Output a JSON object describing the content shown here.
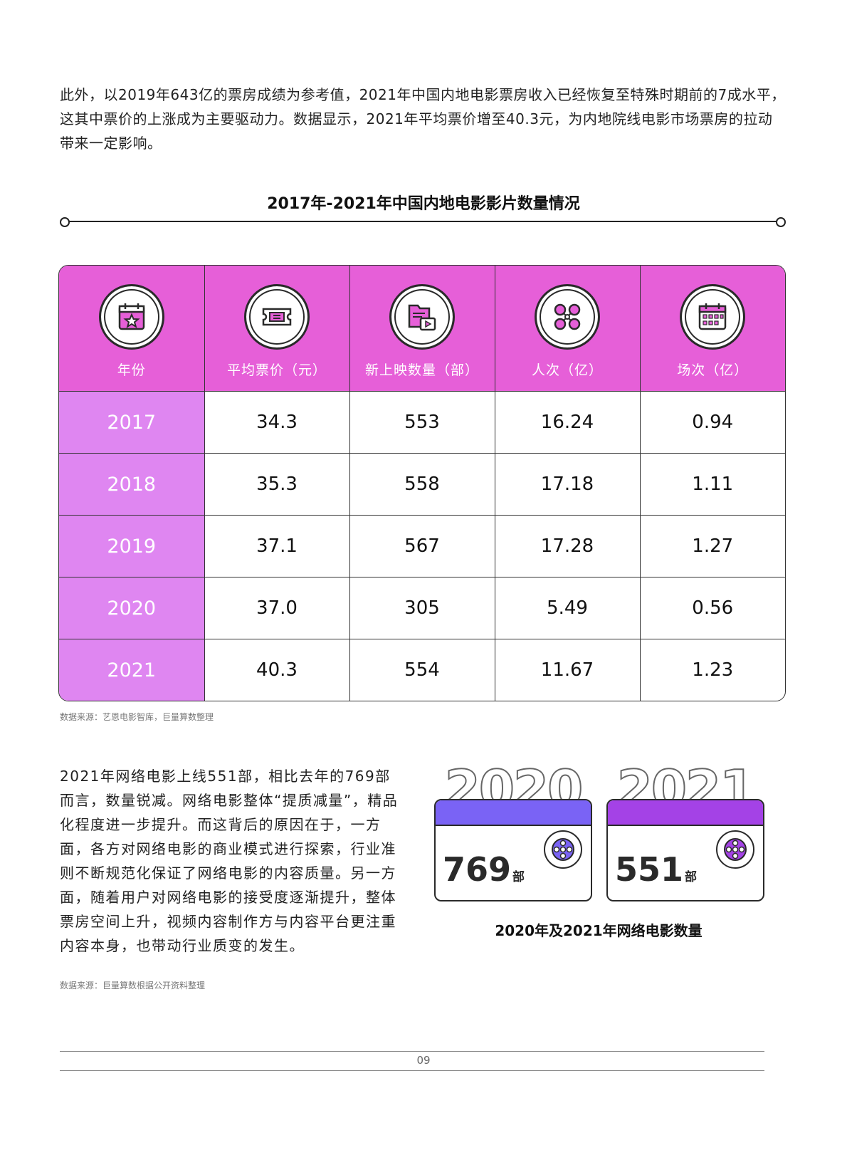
{
  "intro": "此外，以2019年643亿的票房成绩为参考值，2021年中国内地电影票房收入已经恢复至特殊时期前的7成水平，这其中票价的上涨成为主要驱动力。数据显示，2021年平均票价增至40.3元，为内地院线电影市场票房的拉动带来一定影响。",
  "table": {
    "title": "2017年-2021年中国内地电影影片数量情况",
    "headers": [
      {
        "label": "年份",
        "icon": "calendar-star-icon"
      },
      {
        "label": "平均票价（元）",
        "icon": "ticket-icon"
      },
      {
        "label": "新上映数量（部）",
        "icon": "film-folder-icon"
      },
      {
        "label": "人次（亿）",
        "icon": "audience-icon"
      },
      {
        "label": "场次（亿）",
        "icon": "schedule-calendar-icon"
      }
    ],
    "rows": [
      [
        "2017",
        "34.3",
        "553",
        "16.24",
        "0.94"
      ],
      [
        "2018",
        "35.3",
        "558",
        "17.18",
        "1.11"
      ],
      [
        "2019",
        "37.1",
        "567",
        "17.28",
        "1.27"
      ],
      [
        "2020",
        "37.0",
        "305",
        "5.49",
        "0.56"
      ],
      [
        "2021",
        "40.3",
        "554",
        "11.67",
        "1.23"
      ]
    ],
    "source": "数据来源：艺恩电影智库，巨量算数整理"
  },
  "online": {
    "text": "2021年网络电影上线551部，相比去年的769部而言，数量锐减。网络电影整体“提质减量”，精品化程度进一步提升。而这背后的原因在于，一方面，各方对网络电影的商业模式进行探索，行业准则不断规范化保证了网络电影的内容质量。另一方面，随着用户对网络电影的接受度逐渐提升，整体票房空间上升，视频内容制作方与内容平台更注重内容本身，也带动行业质变的发生。",
    "cards": [
      {
        "year": "2020",
        "value": "769",
        "unit": "部",
        "color": "#7a63f5",
        "icon": "film-reel-icon"
      },
      {
        "year": "2021",
        "value": "551",
        "unit": "部",
        "color": "#a442e6",
        "icon": "film-reel-icon"
      }
    ],
    "caption": "2020年及2021年网络电影数量",
    "source": "数据来源：巨量算数根据公开资料整理"
  },
  "page_number": "09",
  "colors": {
    "header": "#e65fd8",
    "year_cell": "#df86f1",
    "card_2020": "#7a63f5",
    "card_2021": "#a442e6"
  }
}
